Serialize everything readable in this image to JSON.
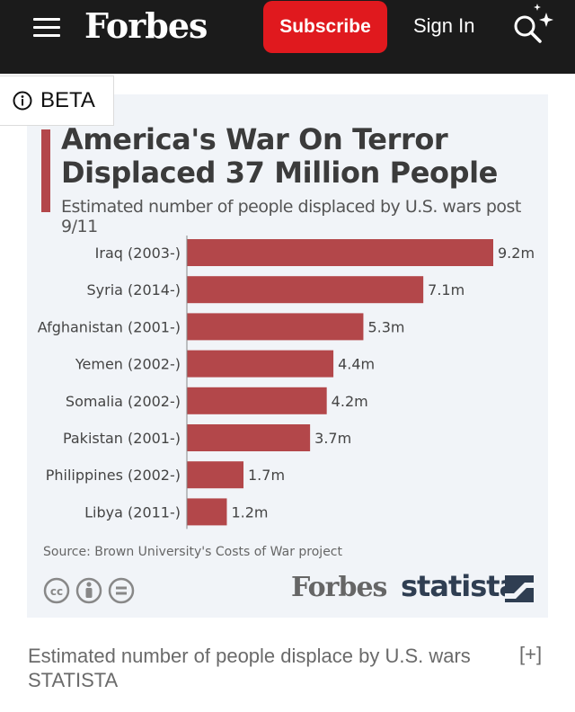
{
  "header": {
    "logo": "Forbes",
    "subscribe_label": "Subscribe",
    "signin_label": "Sign In",
    "icons": {
      "menu": "hamburger-menu-icon",
      "search": "search-sparkle-icon"
    },
    "accent": "#e0191e"
  },
  "beta": {
    "label": "BETA",
    "icon": "info-circle-icon"
  },
  "chart_data": {
    "type": "bar",
    "orientation": "horizontal",
    "title": "America's War On Terror Displaced 37 Million People",
    "subtitle": "Estimated number of people displaced by U.S. wars post 9/11",
    "categories": [
      "Iraq (2003-)",
      "Syria (2014-)",
      "Afghanistan (2001-)",
      "Yemen (2002-)",
      "Somalia (2002-)",
      "Pakistan (2001-)",
      "Philippines (2002-)",
      "Libya (2011-)"
    ],
    "values": [
      9.2,
      7.1,
      5.3,
      4.4,
      4.2,
      3.7,
      1.7,
      1.2
    ],
    "value_labels": [
      "9.2m",
      "7.1m",
      "5.3m",
      "4.4m",
      "4.2m",
      "3.7m",
      "1.7m",
      "1.2m"
    ],
    "unit": "million people",
    "xlim": [
      0,
      9.2
    ],
    "grid": false,
    "bar_color": "#b3474a",
    "source": "Source: Brown University's Costs of War project"
  },
  "branding": {
    "forbes": "Forbes",
    "statista": "statista"
  },
  "caption": {
    "text": "Estimated number of people displace by U.S. wars",
    "credit": "STATISTA",
    "expand_label": "[+]"
  }
}
